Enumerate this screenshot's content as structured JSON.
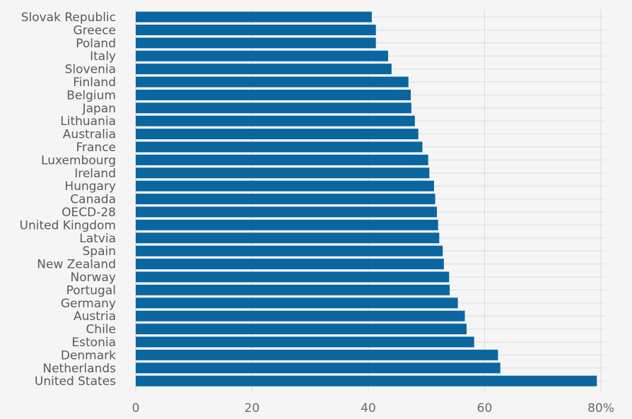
{
  "chart_data": {
    "type": "bar",
    "orientation": "horizontal",
    "title": "",
    "xlabel": "",
    "ylabel": "",
    "x_unit_suffix": "%",
    "xlim": [
      0,
      80
    ],
    "x_ticks": [
      0,
      20,
      40,
      60,
      80
    ],
    "x_tick_labels": [
      "0",
      "20",
      "40",
      "60",
      "80%"
    ],
    "grid": true,
    "bar_color": "#0a66a0",
    "background_color": "#f5f5f5",
    "grid_color": "#dcdcdc",
    "categories": [
      "Slovak Republic",
      "Greece",
      "Poland",
      "Italy",
      "Slovenia",
      "Finland",
      "Belgium",
      "Japan",
      "Lithuania",
      "Australia",
      "France",
      "Luxembourg",
      "Ireland",
      "Hungary",
      "Canada",
      "OECD-28",
      "United Kingdom",
      "Latvia",
      "Spain",
      "New Zealand",
      "Norway",
      "Portugal",
      "Germany",
      "Austria",
      "Chile",
      "Estonia",
      "Denmark",
      "Netherlands",
      "United States"
    ],
    "values": [
      40.6,
      41.3,
      41.3,
      43.4,
      44.0,
      46.9,
      47.3,
      47.4,
      48.0,
      48.6,
      49.3,
      50.3,
      50.5,
      51.3,
      51.5,
      51.8,
      52.0,
      52.2,
      52.8,
      53.0,
      53.9,
      54.0,
      55.4,
      56.6,
      56.9,
      58.2,
      62.3,
      62.7,
      79.3
    ]
  }
}
